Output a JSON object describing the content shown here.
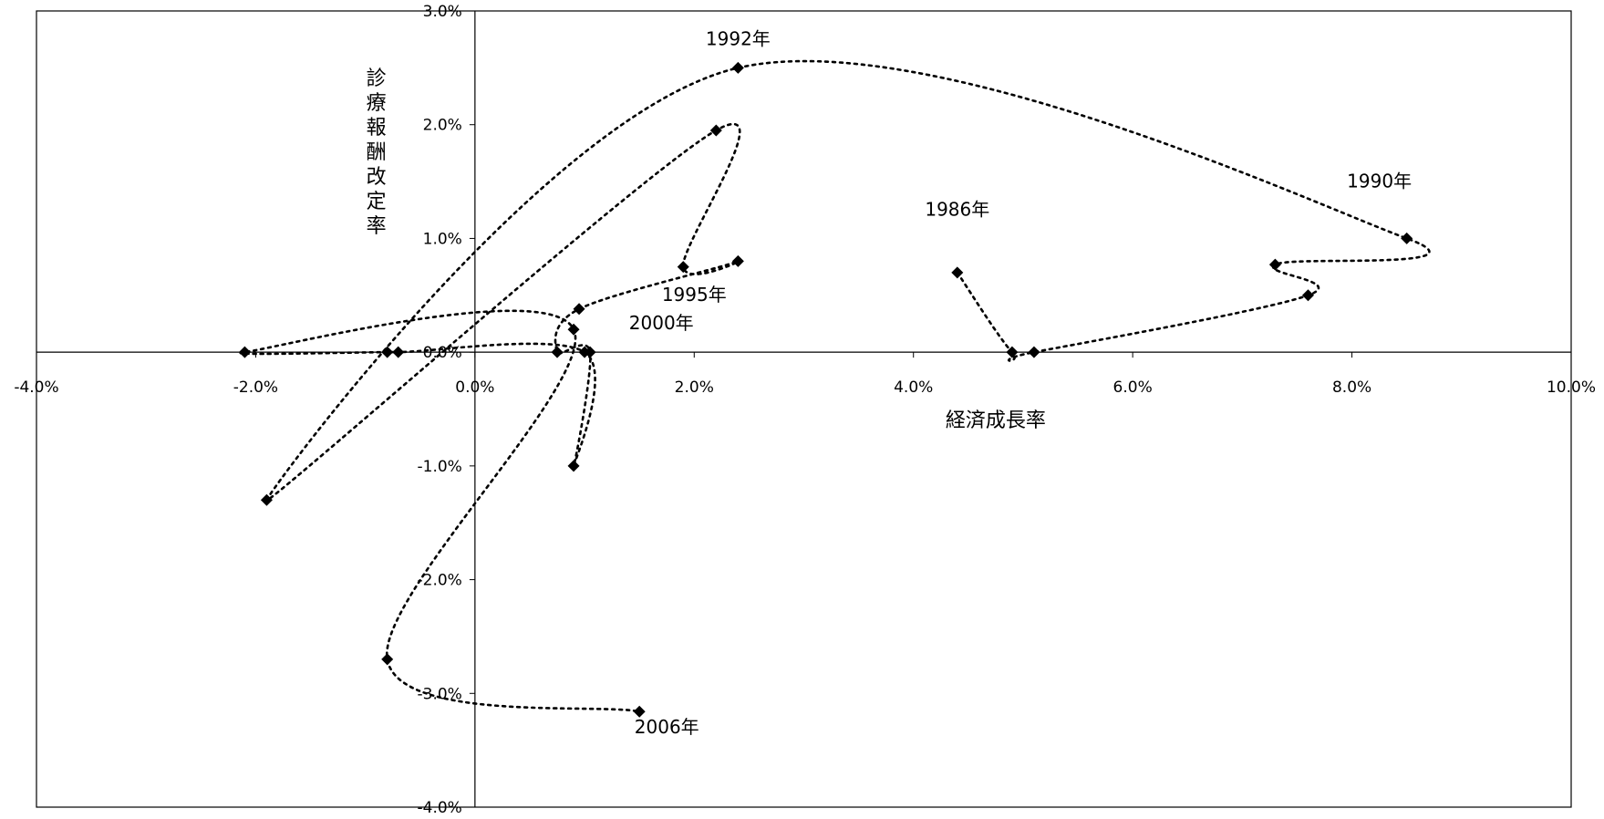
{
  "chart_data": {
    "type": "scatter",
    "title": "",
    "xlabel": "経済成長率",
    "ylabel": "診療報酬改定率",
    "xlim": [
      -4.0,
      10.0
    ],
    "ylim": [
      -4.0,
      3.0
    ],
    "x_ticks": [
      -4.0,
      -2.0,
      0.0,
      2.0,
      4.0,
      6.0,
      8.0,
      10.0
    ],
    "y_ticks": [
      -4.0,
      -3.0,
      -2.0,
      -1.0,
      0.0,
      1.0,
      2.0,
      3.0
    ],
    "x_tick_labels": [
      "-4.0%",
      "-2.0%",
      "0.0%",
      "2.0%",
      "4.0%",
      "6.0%",
      "8.0%",
      "10.0%"
    ],
    "y_tick_labels": [
      "-4.0%",
      "-3.0%",
      "-2.0%",
      "-1.0%",
      "0.0%",
      "1.0%",
      "2.0%",
      "3.0%"
    ],
    "grid": false,
    "legend": "none",
    "line_style": "dotted smooth",
    "marker": "diamond",
    "series": [
      {
        "points": [
          {
            "x": 4.4,
            "y": 0.7
          },
          {
            "x": 4.9,
            "y": 0.0
          },
          {
            "x": 5.1,
            "y": 0.0
          },
          {
            "x": 7.6,
            "y": 0.5
          },
          {
            "x": 7.3,
            "y": 0.77
          },
          {
            "x": 8.5,
            "y": 1.0
          },
          {
            "x": 2.4,
            "y": 2.5
          },
          {
            "x": -1.9,
            "y": -1.3
          },
          {
            "x": 2.2,
            "y": 1.95
          },
          {
            "x": 1.9,
            "y": 0.75
          },
          {
            "x": 2.4,
            "y": 0.8
          },
          {
            "x": 0.95,
            "y": 0.38
          },
          {
            "x": 0.75,
            "y": 0.0
          },
          {
            "x": 1.05,
            "y": 0.0
          },
          {
            "x": 0.9,
            "y": -1.0
          },
          {
            "x": 1.0,
            "y": 0.0
          },
          {
            "x": -0.7,
            "y": 0.0
          },
          {
            "x": -0.8,
            "y": 0.0
          },
          {
            "x": -2.1,
            "y": 0.0
          },
          {
            "x": 0.9,
            "y": 0.2
          },
          {
            "x": -0.8,
            "y": -2.7
          },
          {
            "x": 1.5,
            "y": -3.16
          }
        ]
      }
    ],
    "annotations": [
      {
        "text": "1986年",
        "x": 4.4,
        "y": 1.2
      },
      {
        "text": "1990年",
        "x": 8.25,
        "y": 1.45
      },
      {
        "text": "1992年",
        "x": 2.4,
        "y": 2.7
      },
      {
        "text": "1995年",
        "x": 2.0,
        "y": 0.45
      },
      {
        "text": "2000年",
        "x": 1.7,
        "y": 0.2
      },
      {
        "text": "2006年",
        "x": 1.75,
        "y": -3.35
      }
    ]
  }
}
